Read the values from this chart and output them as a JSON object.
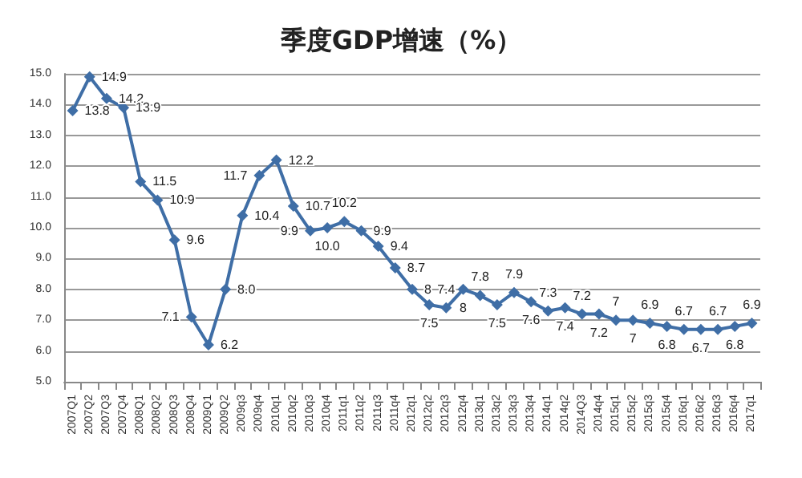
{
  "chart_data": {
    "type": "line",
    "title": "季度GDP增速（%）",
    "categories": [
      "2007Q1",
      "2007Q2",
      "2007Q3",
      "2007Q4",
      "2008Q1",
      "2008Q2",
      "2008Q3",
      "2008Q4",
      "2009Q1",
      "2009Q2",
      "2009q3",
      "2009q4",
      "2010q1",
      "2010q2",
      "2010q3",
      "2010q4",
      "2011q1",
      "2011q2",
      "2011q3",
      "2011q4",
      "2012q1",
      "2012q2",
      "2012q3",
      "2012q4",
      "2013q1",
      "2013q2",
      "2013q3",
      "2013q4",
      "2014q1",
      "2014q2",
      "2014Q3",
      "2014q4",
      "2015q1",
      "2015q2",
      "2015q3",
      "2015q4",
      "2016q1",
      "2016q2",
      "2016q3",
      "2016q4",
      "2017q1"
    ],
    "series": [
      {
        "color": "#3f6ea6",
        "values": [
          13.8,
          14.9,
          14.2,
          13.9,
          11.5,
          10.9,
          9.6,
          7.1,
          6.2,
          8.0,
          10.4,
          11.7,
          12.2,
          10.7,
          9.9,
          10.0,
          10.2,
          9.9,
          9.4,
          8.7,
          8,
          7.5,
          7.4,
          8,
          7.8,
          7.5,
          7.9,
          7.6,
          7.3,
          7.4,
          7.2,
          7.2,
          7,
          7,
          6.9,
          6.8,
          6.7,
          6.7,
          6.7,
          6.8,
          6.9
        ],
        "value_labels": [
          "13.8",
          "14.9",
          "14.2",
          "13.9",
          "11.5",
          "10.9",
          "9.6",
          "7.1",
          "6.2",
          "8.0",
          "10.4",
          "11.7",
          "12.2",
          "10.7",
          "9.9",
          "10.0",
          "10.2",
          "9.9",
          "9.4",
          "8.7",
          "8",
          "7.5",
          "7.4",
          "8",
          "7.8",
          "7.5",
          "7.9",
          "7.6",
          "7.3",
          "7.4",
          "7.2",
          "7.2",
          "7",
          "7",
          "6.9",
          "6.8",
          "6.7",
          "6.7",
          "6.7",
          "6.8",
          "6.9"
        ]
      }
    ],
    "ylim": [
      5,
      15
    ],
    "yticks": [
      {
        "value": 5,
        "label": "5.0"
      },
      {
        "value": 6,
        "label": "6.0"
      },
      {
        "value": 7,
        "label": "7.0"
      },
      {
        "value": 8,
        "label": "8.0"
      },
      {
        "value": 9,
        "label": "9.0"
      },
      {
        "value": 10,
        "label": "10.0"
      },
      {
        "value": 11,
        "label": "11.0"
      },
      {
        "value": 12,
        "label": "12.0"
      },
      {
        "value": 13,
        "label": "13.0"
      },
      {
        "value": 14,
        "label": "14.0"
      },
      {
        "value": 15,
        "label": "15.0"
      }
    ],
    "grid": "y",
    "marker": "diamond",
    "line_style": "solid"
  }
}
